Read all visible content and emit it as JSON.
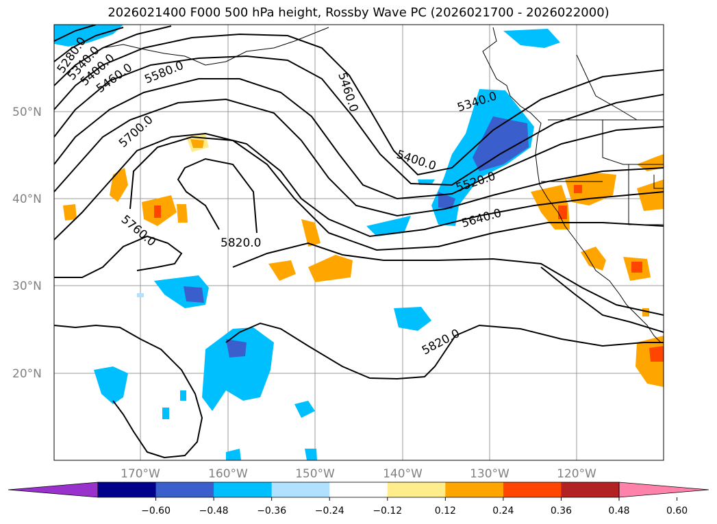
{
  "title": "2026021400 F000 500 hPa height, Rossby Wave PC (2026021700 - 2026022000)",
  "map": {
    "lat_labels": [
      "50°N",
      "40°N",
      "30°N",
      "20°N"
    ],
    "lon_labels": [
      "170°W",
      "160°W",
      "150°W",
      "140°W",
      "130°W",
      "120°W"
    ],
    "contour_labels": [
      "5280.0",
      "5340.0",
      "5400.0",
      "5460.0",
      "5580.0",
      "5700.0",
      "5760.0",
      "5820.0",
      "5460.0",
      "5340.0",
      "5400.0",
      "5520.0",
      "5640.0",
      "5820.0"
    ]
  },
  "colorbar": {
    "ticks": [
      "−0.60",
      "−0.48",
      "−0.36",
      "−0.24",
      "−0.12",
      "0.12",
      "0.24",
      "0.36",
      "0.48",
      "0.60"
    ],
    "colors": [
      "#9932cc",
      "#00008b",
      "#3a5fcd",
      "#00bfff",
      "#b0e2ff",
      "#ffffff",
      "#ffec8b",
      "#ffa500",
      "#ff4500",
      "#b22222",
      "#ff82ab"
    ]
  }
}
